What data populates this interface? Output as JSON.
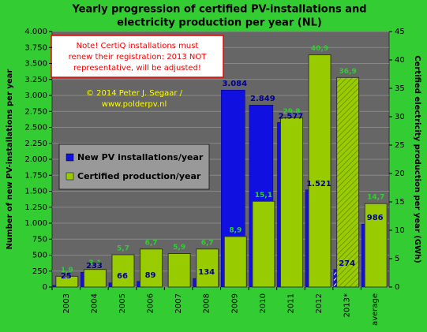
{
  "chart_data": {
    "type": "bar",
    "title": [
      "Yearly progression  of certified PV-installations  and",
      "electricity production  per year (NL)"
    ],
    "y_label": "Number of new PV-installations per year",
    "y2_label": "Certified electricity production per year (GWh)",
    "note": [
      "Note! CertiQ installations  must",
      "renew their registration: 2013 NOT",
      "representative, will be adjusted!"
    ],
    "credit": [
      "© 2014 Peter J. Segaar /",
      "www.polderpv.nl"
    ],
    "categories": [
      "2003",
      "2004",
      "2005",
      "2006",
      "2007",
      "2008",
      "2009",
      "2010",
      "2011",
      "2012",
      "2013*",
      "average"
    ],
    "hatched_index": 10,
    "series": [
      {
        "name": "New PV installations/year",
        "color": "#1010e0",
        "label_color": "#00008b",
        "values": [
          25,
          233,
          66,
          89,
          null,
          134,
          3084,
          2849,
          2577,
          1521,
          274,
          986
        ],
        "value_labels": [
          "25",
          "233",
          "66",
          "89",
          null,
          "134",
          "3.084",
          "2.849",
          "2.577",
          "1.521",
          "274",
          "986"
        ]
      },
      {
        "name": "Certified production/year",
        "color": "#99cc00",
        "label_color": "#33cc33",
        "axis": "y2",
        "values": [
          1.9,
          3.1,
          5.7,
          6.7,
          5.9,
          6.7,
          8.9,
          15.1,
          29.8,
          40.9,
          36.9,
          14.7
        ],
        "value_labels": [
          "1,9",
          "3,1",
          "5,7",
          "6,7",
          "5,9",
          "6,7",
          "8,9",
          "15,1",
          "29,8",
          "40,9",
          "36,9",
          "14,7"
        ]
      }
    ],
    "ylim": [
      0,
      4000
    ],
    "yticks": [
      {
        "value": 0,
        "label": "0"
      },
      {
        "value": 250,
        "label": "250"
      },
      {
        "value": 500,
        "label": "500"
      },
      {
        "value": 750,
        "label": "750"
      },
      {
        "value": 1000,
        "label": "1.000"
      },
      {
        "value": 1250,
        "label": "1.250"
      },
      {
        "value": 1500,
        "label": "1.500"
      },
      {
        "value": 1750,
        "label": "1.750"
      },
      {
        "value": 2000,
        "label": "2.000"
      },
      {
        "value": 2250,
        "label": "2.250"
      },
      {
        "value": 2500,
        "label": "2.500"
      },
      {
        "value": 2750,
        "label": "2.750"
      },
      {
        "value": 3000,
        "label": "3.000"
      },
      {
        "value": 3250,
        "label": "3.250"
      },
      {
        "value": 3500,
        "label": "3.500"
      },
      {
        "value": 3750,
        "label": "3.750"
      },
      {
        "value": 4000,
        "label": "4.000"
      }
    ],
    "y2lim": [
      0,
      45
    ],
    "y2ticks": [
      0,
      5,
      10,
      15,
      20,
      25,
      30,
      35,
      40,
      45
    ],
    "grid": true
  }
}
